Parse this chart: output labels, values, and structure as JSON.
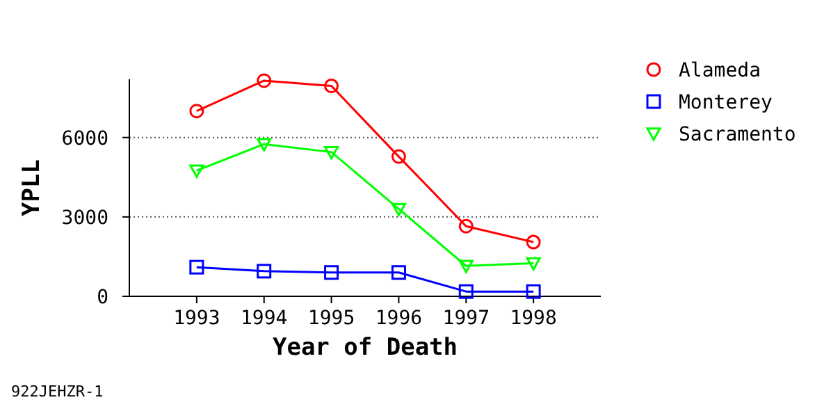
{
  "chart_data": {
    "type": "line",
    "xlabel": "Year of Death",
    "ylabel": "YPLL",
    "x": [
      1993,
      1994,
      1995,
      1996,
      1997,
      1998
    ],
    "xlim": [
      1992,
      1999
    ],
    "xticks": [
      1993,
      1994,
      1995,
      1996,
      1997,
      1998
    ],
    "ylim": [
      0,
      8200
    ],
    "yticks": [
      0,
      3000,
      6000
    ],
    "grid": "y",
    "legend": "top right",
    "line_style": "solid",
    "series": [
      {
        "name": "Alameda",
        "color": "#ff0000",
        "marker": "circle",
        "values": [
          7000,
          8150,
          7950,
          5280,
          2650,
          2050
        ]
      },
      {
        "name": "Monterey",
        "color": "#0000ff",
        "marker": "square",
        "values": [
          1100,
          950,
          900,
          900,
          180,
          180
        ]
      },
      {
        "name": "Sacramento",
        "color": "#00ff00",
        "marker": "triangle",
        "values": [
          4750,
          5750,
          5450,
          3300,
          1150,
          1250
        ]
      }
    ],
    "annotations": [
      "922JEHZR-1"
    ]
  }
}
